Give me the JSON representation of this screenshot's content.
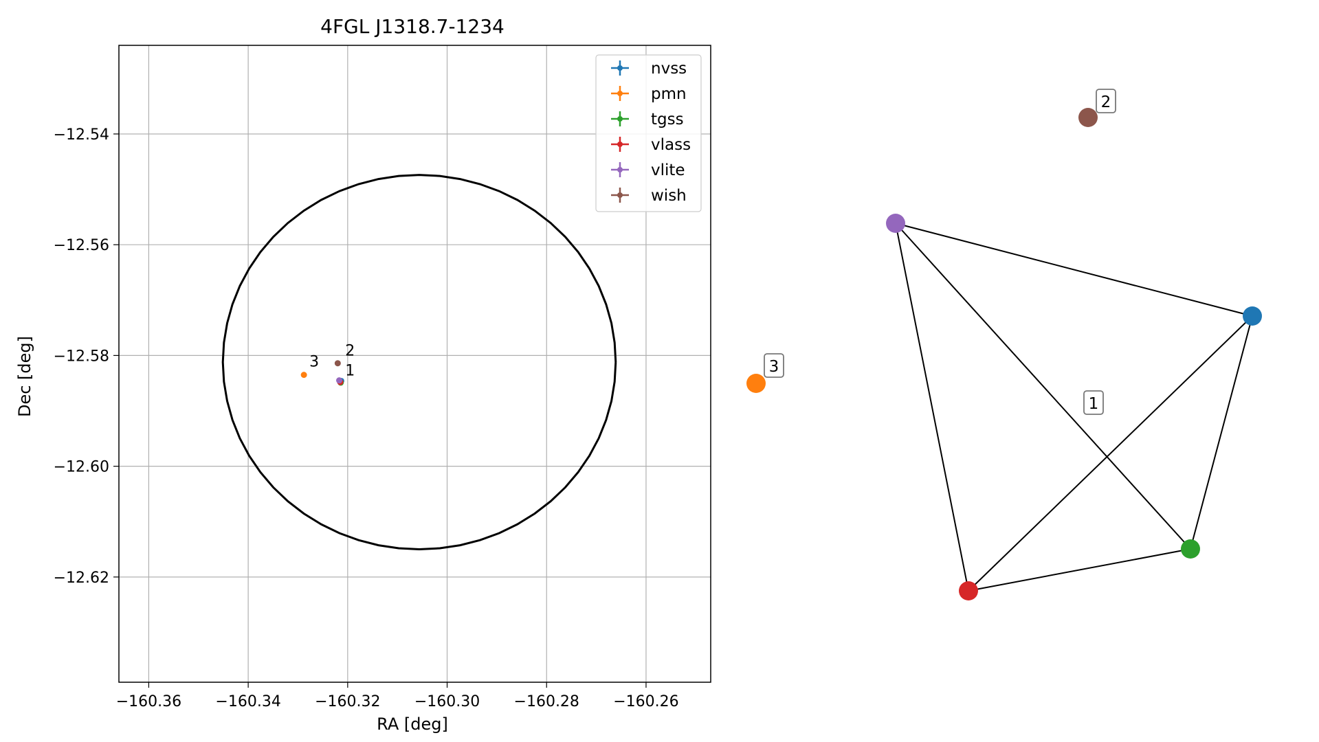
{
  "chart_data": [
    {
      "type": "scatter",
      "title": "4FGL J1318.7-1234",
      "xlabel": "RA [deg]",
      "ylabel": "Dec [deg]",
      "xlim": [
        -160.366,
        -160.247
      ],
      "ylim": [
        -12.639,
        -12.524
      ],
      "xticks": [
        -160.36,
        -160.34,
        -160.32,
        -160.3,
        -160.28,
        -160.26
      ],
      "xtick_labels": [
        "−160.36",
        "−160.34",
        "−160.32",
        "−160.30",
        "−160.28",
        "−160.26"
      ],
      "yticks": [
        -12.54,
        -12.56,
        -12.58,
        -12.6,
        -12.62
      ],
      "ytick_labels": [
        "−12.54",
        "−12.56",
        "−12.58",
        "−12.60",
        "−12.62"
      ],
      "grid": true,
      "legend_position": "top-right",
      "circle": {
        "center": [
          -160.3056,
          -12.5812
        ],
        "radius_ra": 0.0395,
        "radius_dec": 0.0338
      },
      "series": [
        {
          "name": "nvss",
          "color": "#1f77b4",
          "x": -160.3213,
          "y": -12.5846
        },
        {
          "name": "pmn",
          "color": "#ff7f0e",
          "x": -160.3288,
          "y": -12.5835
        },
        {
          "name": "tgss",
          "color": "#2ca02c",
          "x": -160.3214,
          "y": -12.5849
        },
        {
          "name": "vlass",
          "color": "#d62728",
          "x": -160.3215,
          "y": -12.5848
        },
        {
          "name": "vlite",
          "color": "#9467bd",
          "x": -160.3217,
          "y": -12.5845
        },
        {
          "name": "wish",
          "color": "#8c564b",
          "x": -160.322,
          "y": -12.5814
        }
      ],
      "annotations": [
        {
          "text": "1",
          "x": -160.3205,
          "y": -12.5836
        },
        {
          "text": "2",
          "x": -160.3205,
          "y": -12.58
        },
        {
          "text": "3",
          "x": -160.3277,
          "y": -12.582
        }
      ]
    },
    {
      "type": "network",
      "nodes": [
        {
          "id": "nvss",
          "color": "#1f77b4"
        },
        {
          "id": "pmn",
          "color": "#ff7f0e"
        },
        {
          "id": "tgss",
          "color": "#2ca02c"
        },
        {
          "id": "vlass",
          "color": "#d62728"
        },
        {
          "id": "vlite",
          "color": "#9467bd"
        },
        {
          "id": "wish",
          "color": "#8c564b"
        }
      ],
      "edges": [
        [
          "vlite",
          "nvss"
        ],
        [
          "vlite",
          "vlass"
        ],
        [
          "vlite",
          "tgss"
        ],
        [
          "nvss",
          "vlass"
        ],
        [
          "nvss",
          "tgss"
        ],
        [
          "vlass",
          "tgss"
        ]
      ],
      "labels": [
        {
          "text": "1",
          "group": [
            "nvss",
            "tgss",
            "vlass",
            "vlite"
          ]
        },
        {
          "text": "2",
          "group": [
            "wish"
          ]
        },
        {
          "text": "3",
          "group": [
            "pmn"
          ]
        }
      ]
    }
  ]
}
